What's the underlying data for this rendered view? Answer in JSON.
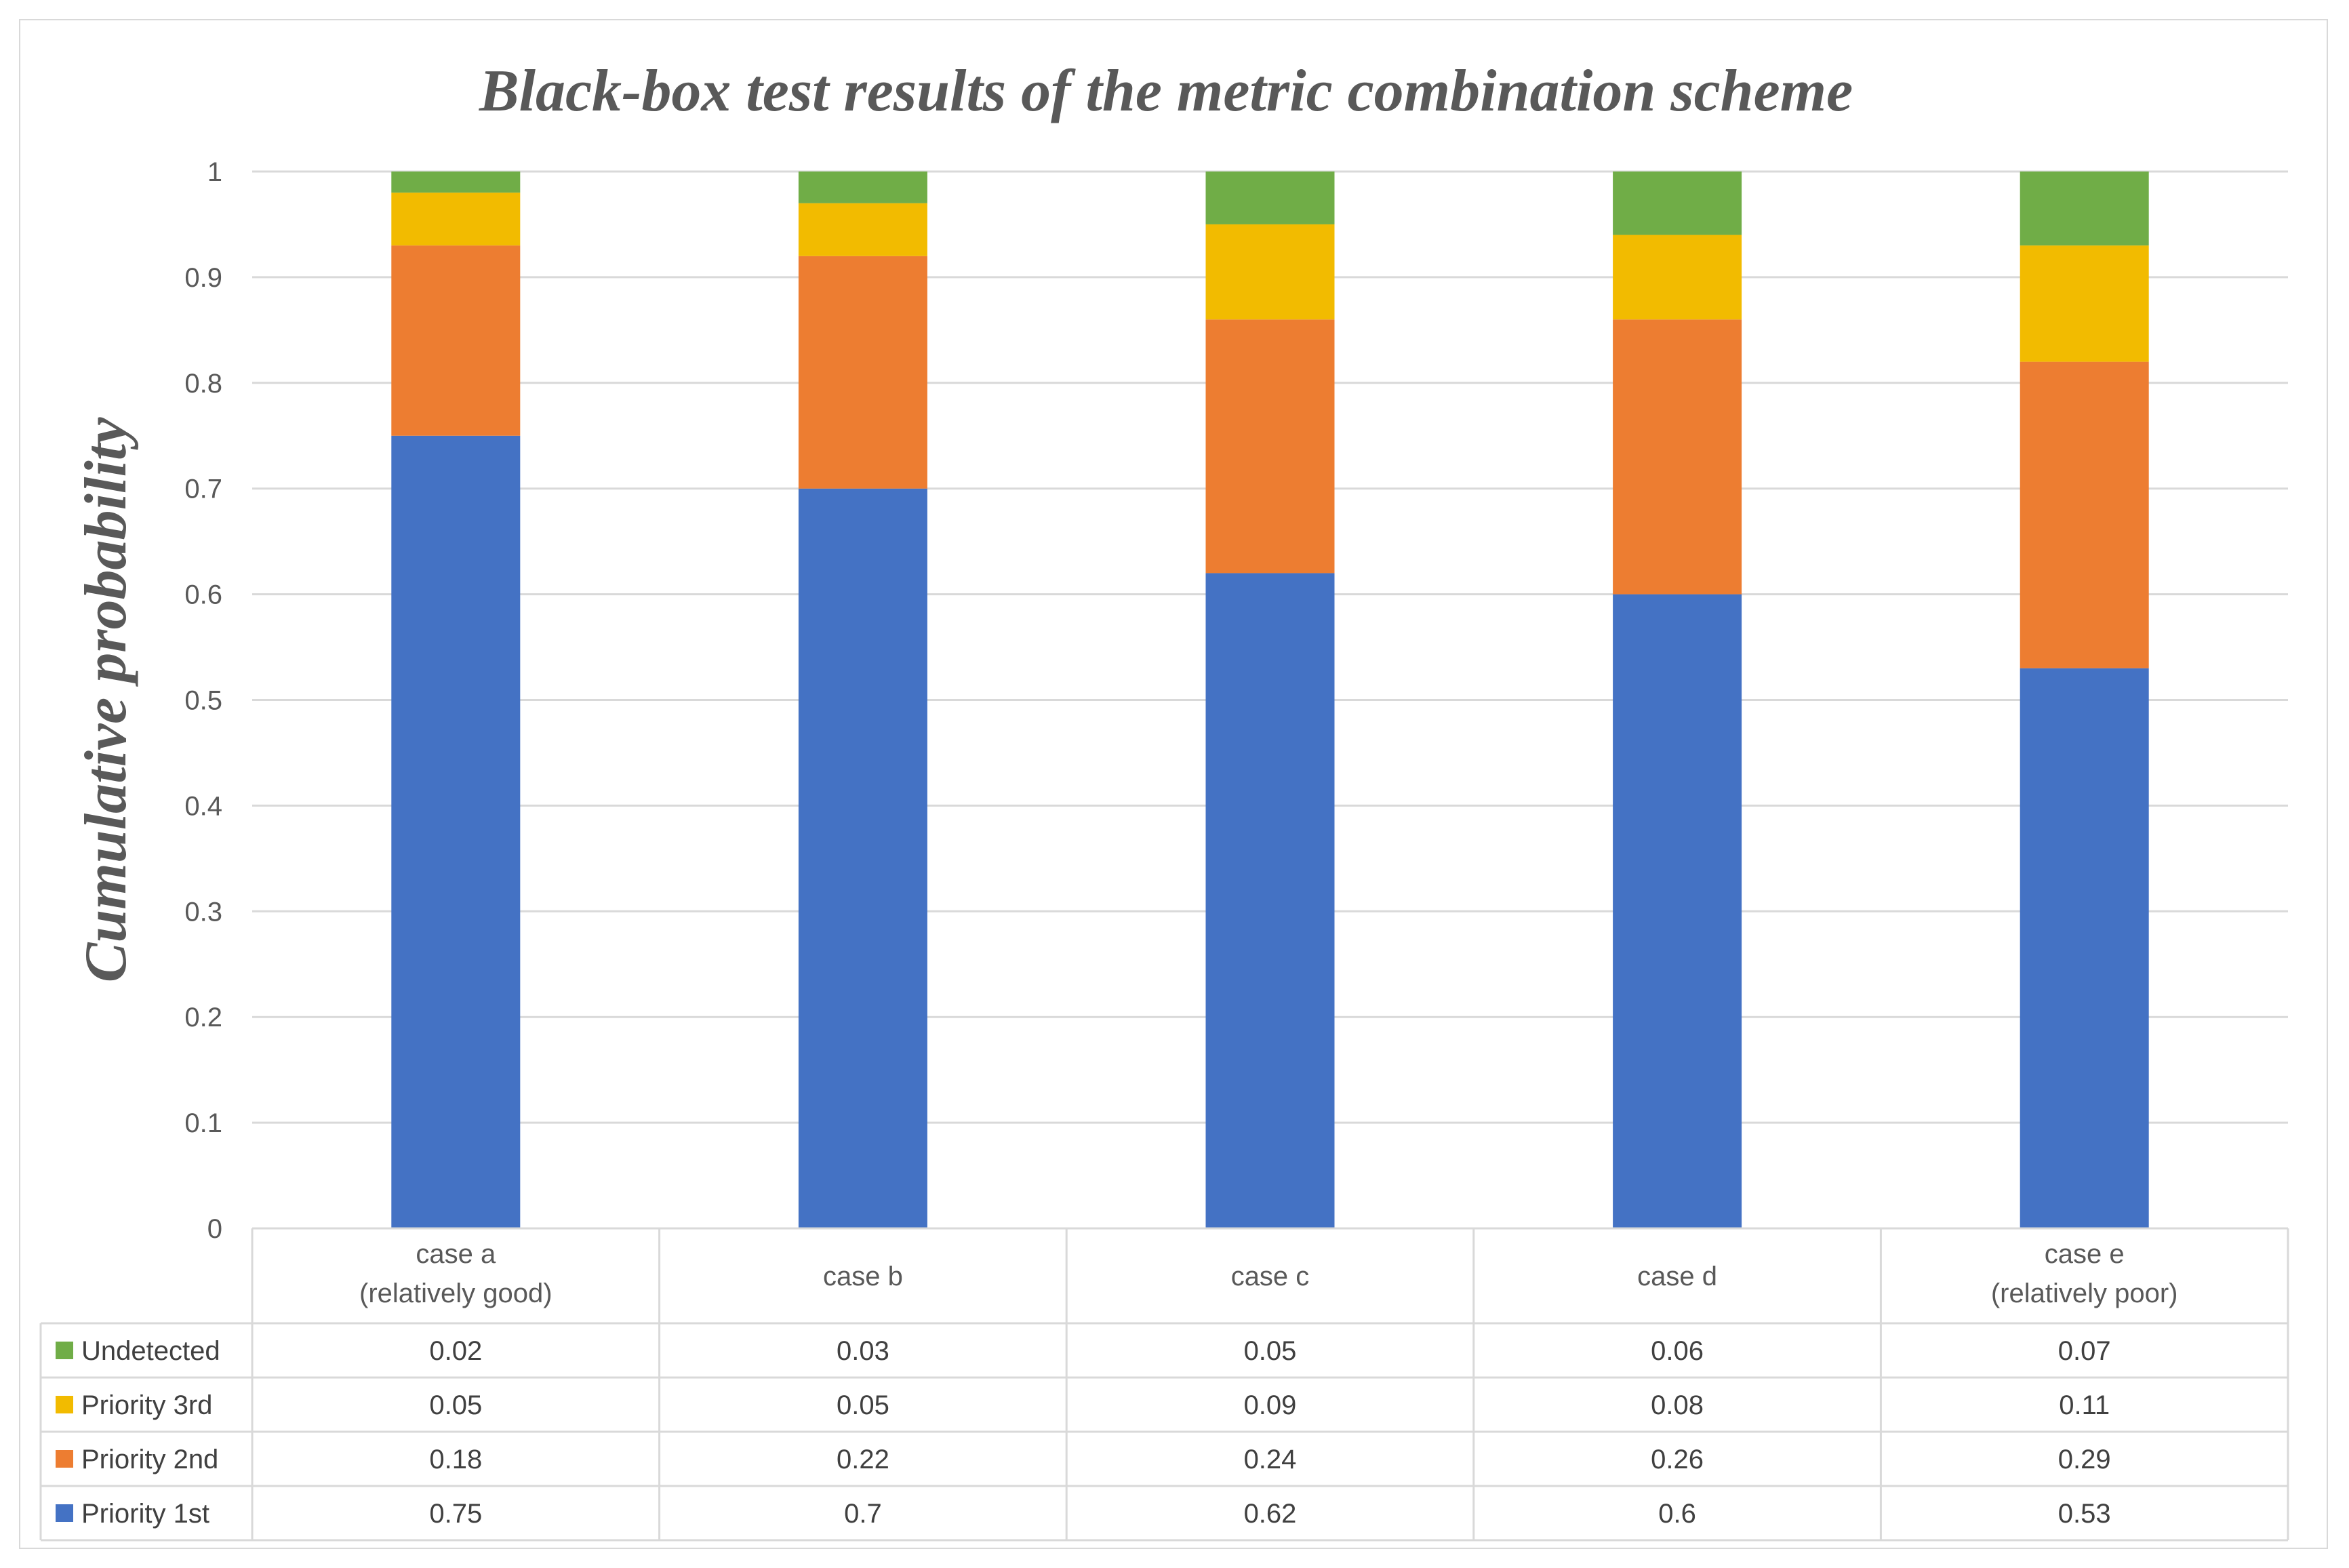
{
  "chart_data": {
    "type": "bar",
    "stacked": true,
    "title": "Black-box test results of the metric combination scheme",
    "xlabel": "",
    "ylabel": "Cumulative probability",
    "ylim": [
      0,
      1
    ],
    "yticks": [
      "0",
      "0.1",
      "0.2",
      "0.3",
      "0.4",
      "0.5",
      "0.6",
      "0.7",
      "0.8",
      "0.9",
      "1"
    ],
    "grid": true,
    "legend": "data-table",
    "categories": [
      [
        "case a",
        "(relatively good)"
      ],
      [
        "case b"
      ],
      [
        "case c"
      ],
      [
        "case d"
      ],
      [
        "case e",
        "(relatively poor)"
      ]
    ],
    "series": [
      {
        "name": "Priority 1st",
        "color": "#4472c4",
        "values": [
          0.75,
          0.7,
          0.62,
          0.6,
          0.53
        ],
        "labels": [
          "0.75",
          "0.7",
          "0.62",
          "0.6",
          "0.53"
        ]
      },
      {
        "name": "Priority 2nd",
        "color": "#ed7d31",
        "values": [
          0.18,
          0.22,
          0.24,
          0.26,
          0.29
        ],
        "labels": [
          "0.18",
          "0.22",
          "0.24",
          "0.26",
          "0.29"
        ]
      },
      {
        "name": "Priority 3rd",
        "color": "#f2bb00",
        "values": [
          0.05,
          0.05,
          0.09,
          0.08,
          0.11
        ],
        "labels": [
          "0.05",
          "0.05",
          "0.09",
          "0.08",
          "0.11"
        ]
      },
      {
        "name": "Undetected",
        "color": "#70ad47",
        "values": [
          0.02,
          0.03,
          0.05,
          0.06,
          0.07
        ],
        "labels": [
          "0.02",
          "0.03",
          "0.05",
          "0.06",
          "0.07"
        ]
      }
    ],
    "table_row_order": [
      "Undetected",
      "Priority 3rd",
      "Priority 2nd",
      "Priority 1st"
    ]
  }
}
